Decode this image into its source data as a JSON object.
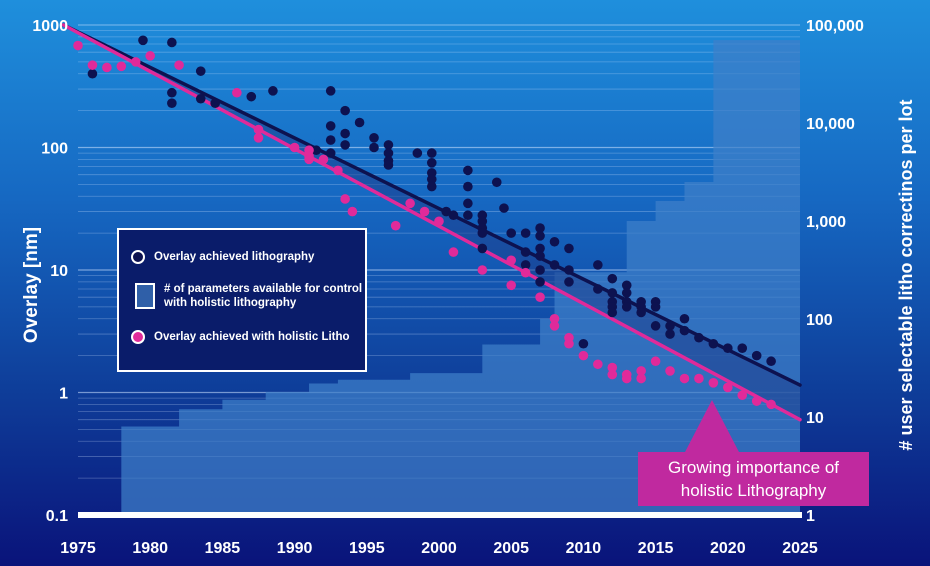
{
  "chart_data": {
    "type": "scatter",
    "title": "",
    "xlabel": "",
    "ylabel": "Overlay [nm]",
    "y2label": "# user selectable litho correctinos per lot",
    "xlim": [
      1974,
      2026
    ],
    "ylim": [
      0.1,
      1000
    ],
    "y2lim": [
      1,
      100000
    ],
    "y_scale": "log",
    "y2_scale": "log",
    "x_ticks": [
      "1975",
      "1980",
      "1985",
      "1990",
      "1995",
      "2000",
      "2005",
      "2010",
      "2015",
      "2020",
      "2025"
    ],
    "y_ticks": [
      "1000",
      "100",
      "10",
      "1",
      "0.1"
    ],
    "y2_ticks": [
      "100,000",
      "10,000",
      "1,000",
      "100",
      "10",
      "1"
    ],
    "grid": "horizontal",
    "legend": {
      "placement": "center-left",
      "entries": [
        "Overlay achieved lithography",
        "# of parameters available for control with holistic lithography",
        "Overlay achieved with holistic Litho"
      ]
    },
    "annotation": {
      "lines": [
        "Growing importance of",
        "holistic Lithography"
      ],
      "placement": "bottom-right"
    },
    "colors": {
      "overlay": "#0d1250",
      "holistic": "#e02a9a",
      "parameters": "#3f7fc9"
    },
    "series": [
      {
        "name": "Overlay achieved lithography",
        "marker": "dot",
        "color": "#0d1250",
        "points": [
          [
            1976,
            400
          ],
          [
            1979.5,
            750
          ],
          [
            1981.5,
            720
          ],
          [
            1981.5,
            280
          ],
          [
            1981.5,
            230
          ],
          [
            1983.5,
            420
          ],
          [
            1983.5,
            250
          ],
          [
            1984.5,
            230
          ],
          [
            1987,
            260
          ],
          [
            1988.5,
            290
          ],
          [
            1991.5,
            95
          ],
          [
            1992.5,
            290
          ],
          [
            1992.5,
            150
          ],
          [
            1992.5,
            115
          ],
          [
            1992.5,
            90
          ],
          [
            1993.5,
            200
          ],
          [
            1993.5,
            130
          ],
          [
            1993.5,
            105
          ],
          [
            1994.5,
            160
          ],
          [
            1995.5,
            120
          ],
          [
            1995.5,
            100
          ],
          [
            1996.5,
            105
          ],
          [
            1996.5,
            90
          ],
          [
            1996.5,
            78
          ],
          [
            1996.5,
            72
          ],
          [
            1998.5,
            90
          ],
          [
            1999.5,
            90
          ],
          [
            1999.5,
            75
          ],
          [
            1999.5,
            62
          ],
          [
            1999.5,
            55
          ],
          [
            1999.5,
            48
          ],
          [
            2000.5,
            30
          ],
          [
            2001,
            28
          ],
          [
            2002,
            65
          ],
          [
            2002,
            48
          ],
          [
            2002,
            35
          ],
          [
            2002,
            28
          ],
          [
            2003,
            28
          ],
          [
            2003,
            25
          ],
          [
            2003,
            22
          ],
          [
            2003,
            20
          ],
          [
            2003,
            15
          ],
          [
            2004,
            52
          ],
          [
            2004.5,
            32
          ],
          [
            2005,
            20
          ],
          [
            2006,
            20
          ],
          [
            2006,
            14
          ],
          [
            2006,
            11
          ],
          [
            2007,
            22
          ],
          [
            2007,
            19
          ],
          [
            2007,
            15
          ],
          [
            2007,
            13
          ],
          [
            2007,
            10
          ],
          [
            2007,
            8
          ],
          [
            2008,
            17
          ],
          [
            2008,
            11
          ],
          [
            2009,
            15
          ],
          [
            2009,
            10
          ],
          [
            2009,
            8
          ],
          [
            2010,
            2.5
          ],
          [
            2011,
            11
          ],
          [
            2011,
            7
          ],
          [
            2012,
            8.5
          ],
          [
            2012,
            6.5
          ],
          [
            2012,
            5.5
          ],
          [
            2012,
            5
          ],
          [
            2012,
            4.5
          ],
          [
            2013,
            7.5
          ],
          [
            2013,
            6.5
          ],
          [
            2013,
            5.5
          ],
          [
            2013,
            5
          ],
          [
            2014,
            5.5
          ],
          [
            2014,
            5
          ],
          [
            2014,
            4.5
          ],
          [
            2015,
            5.5
          ],
          [
            2015,
            5
          ],
          [
            2015,
            3.5
          ],
          [
            2016,
            3.5
          ],
          [
            2016,
            3
          ],
          [
            2017,
            4
          ],
          [
            2017,
            3.2
          ],
          [
            2018,
            2.8
          ],
          [
            2019,
            2.5
          ],
          [
            2020,
            2.3
          ],
          [
            2021,
            2.3
          ],
          [
            2022,
            2
          ],
          [
            2023,
            1.8
          ]
        ]
      },
      {
        "name": "Overlay achieved with holistic Litho",
        "marker": "dot",
        "color": "#e02a9a",
        "points": [
          [
            1975,
            680
          ],
          [
            1976,
            470
          ],
          [
            1977,
            450
          ],
          [
            1978,
            460
          ],
          [
            1979,
            500
          ],
          [
            1980,
            560
          ],
          [
            1982,
            470
          ],
          [
            1986,
            280
          ],
          [
            1987.5,
            140
          ],
          [
            1987.5,
            120
          ],
          [
            1990,
            100
          ],
          [
            1991,
            95
          ],
          [
            1991,
            85
          ],
          [
            1991,
            80
          ],
          [
            1992,
            80
          ],
          [
            1993,
            65
          ],
          [
            1993.5,
            38
          ],
          [
            1994,
            30
          ],
          [
            1997,
            23
          ],
          [
            1998,
            35
          ],
          [
            1999,
            30
          ],
          [
            2000,
            25
          ],
          [
            2001,
            14
          ],
          [
            2003,
            10
          ],
          [
            2005,
            12
          ],
          [
            2005,
            7.5
          ],
          [
            2006,
            9.5
          ],
          [
            2007,
            6
          ],
          [
            2008,
            4
          ],
          [
            2008,
            3.5
          ],
          [
            2009,
            2.8
          ],
          [
            2009,
            2.5
          ],
          [
            2010,
            2
          ],
          [
            2011,
            1.7
          ],
          [
            2012,
            1.6
          ],
          [
            2012,
            1.4
          ],
          [
            2013,
            1.4
          ],
          [
            2013,
            1.3
          ],
          [
            2014,
            1.5
          ],
          [
            2014,
            1.3
          ],
          [
            2015,
            1.8
          ],
          [
            2016,
            1.5
          ],
          [
            2017,
            1.3
          ],
          [
            2018,
            1.3
          ],
          [
            2019,
            1.2
          ],
          [
            2020,
            1.1
          ],
          [
            2021,
            0.95
          ],
          [
            2022,
            0.85
          ],
          [
            2023,
            0.8
          ]
        ]
      }
    ],
    "trend_lines": [
      {
        "series": "Overlay achieved lithography",
        "color": "#0d1250",
        "from": [
          1974,
          1000
        ],
        "to": [
          2025,
          1.15
        ]
      },
      {
        "series": "Overlay achieved with holistic Litho",
        "color": "#e02a9a",
        "from": [
          1974,
          1000
        ],
        "to": [
          2025,
          0.6
        ]
      }
    ],
    "area": {
      "name": "# of parameters available for control with holistic lithography",
      "axis": "y2",
      "color": "#3f7fc9",
      "steps": [
        [
          1978,
          8
        ],
        [
          1982,
          12
        ],
        [
          1985,
          15
        ],
        [
          1988,
          18
        ],
        [
          1991,
          22
        ],
        [
          1993,
          24
        ],
        [
          1998,
          28
        ],
        [
          2003,
          55
        ],
        [
          2007,
          100
        ],
        [
          2008,
          300
        ],
        [
          2013,
          1000
        ],
        [
          2015,
          1600
        ],
        [
          2017,
          2500
        ],
        [
          2019,
          70000
        ],
        [
          2025,
          70000
        ]
      ]
    }
  }
}
